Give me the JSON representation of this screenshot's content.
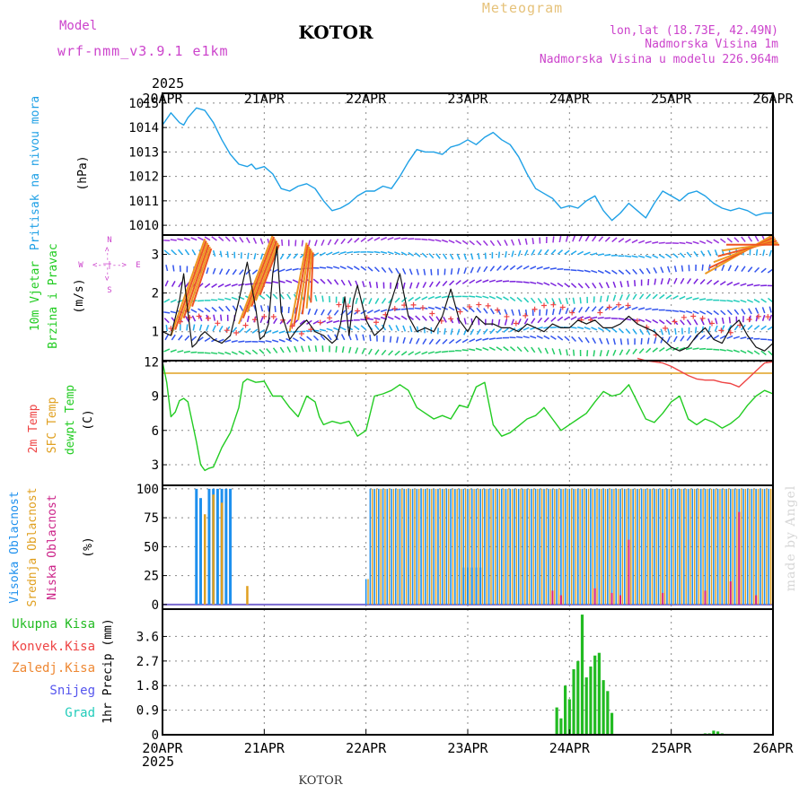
{
  "header": {
    "model_label": "Model",
    "model_name": "wrf-nmm_v3.9.1 e1km",
    "station": "KOTOR",
    "product": "Meteogram",
    "lonlat": "lon,lat (18.73E, 42.49N)",
    "elevation": "Nadmorska Visina 1m",
    "model_elevation": "Nadmorska Visina u modelu 226.964m",
    "footer_station": "KOTOR",
    "credit": "made by Angel"
  },
  "colors": {
    "pressure": "#1ea0e6",
    "temp2m": "#ee4444",
    "sfc_temp": "#e0a020",
    "dewpoint": "#22cc22",
    "high_cloud": "#1e90ee",
    "mid_cloud": "#e0a020",
    "low_cloud": "#cc2288",
    "precip": "#22bb22",
    "axis_title": "#cc44cc",
    "grid": "#888888"
  },
  "time_axis": {
    "year": "2025",
    "labels": [
      "20APR",
      "21APR",
      "22APR",
      "23APR",
      "24APR",
      "25APR",
      "26APR"
    ]
  },
  "panels": {
    "pressure": {
      "label": "Pritisak na nivou mora",
      "unit": "(hPa)"
    },
    "wind": {
      "label_1": "10m Vjetar",
      "label_2": "Brzina i Pravac",
      "unit": "(m/s)",
      "compass_n": "N",
      "compass_s": "S",
      "compass_w": "W",
      "compass_e": "E",
      "compass_mid": "<--|-->"
    },
    "temp": {
      "label_2m": "2m Temp",
      "label_sfc": "SFC Temp",
      "label_dew": "dewpt Temp",
      "unit": "(C)"
    },
    "cloud": {
      "label_high": "Visoka Oblacnost",
      "label_mid": "Srednja Oblacnost",
      "label_low": "Niska Oblacnost",
      "unit": "(%)"
    },
    "precip": {
      "label_total": "Ukupna Kisa",
      "label_conv": "Konvek.Kisa",
      "label_frz": "Zaledj.Kisa",
      "label_snow": "Snijeg",
      "label_hail": "Grad",
      "unit": "1hr Precip (mm)"
    }
  },
  "chart_data": [
    {
      "type": "line",
      "ylabel": "Pritisak na nivou mora (hPa)",
      "ylim": [
        1009.6,
        1015.4
      ],
      "yticks": [
        1010,
        1011,
        1012,
        1013,
        1014,
        1015
      ],
      "x_hours": [
        0,
        2,
        4,
        5,
        6,
        8,
        10,
        12,
        14,
        16,
        18,
        20,
        21,
        22,
        24,
        26,
        28,
        30,
        32,
        34,
        36,
        38,
        40,
        42,
        44,
        46,
        48,
        50,
        52,
        54,
        56,
        58,
        60,
        62,
        64,
        66,
        68,
        70,
        72,
        74,
        76,
        78,
        80,
        82,
        84,
        86,
        88,
        90,
        92,
        94,
        96,
        98,
        100,
        102,
        104,
        106,
        108,
        110,
        112,
        114,
        116,
        118,
        120,
        122,
        124,
        126,
        128,
        130,
        132,
        134,
        136,
        138,
        140,
        142,
        144
      ],
      "series": [
        {
          "values": [
            1014.1,
            1014.6,
            1014.2,
            1014.1,
            1014.4,
            1014.8,
            1014.7,
            1014.2,
            1013.5,
            1012.9,
            1012.5,
            1012.4,
            1012.5,
            1012.3,
            1012.4,
            1012.1,
            1011.5,
            1011.4,
            1011.6,
            1011.7,
            1011.5,
            1011.0,
            1010.6,
            1010.7,
            1010.9,
            1011.2,
            1011.4,
            1011.4,
            1011.6,
            1011.5,
            1012.0,
            1012.6,
            1013.1,
            1013.0,
            1013.0,
            1012.9,
            1013.2,
            1013.3,
            1013.5,
            1013.3,
            1013.6,
            1013.8,
            1013.5,
            1013.3,
            1012.8,
            1012.1,
            1011.5,
            1011.3,
            1011.1,
            1010.7,
            1010.8,
            1010.7,
            1011.0,
            1011.2,
            1010.6,
            1010.2,
            1010.5,
            1010.9,
            1010.6,
            1010.3,
            1010.9,
            1011.4,
            1011.2,
            1011.0,
            1011.3,
            1011.4,
            1011.2,
            1010.9,
            1010.7,
            1010.6,
            1010.7,
            1010.6,
            1010.4,
            1010.5,
            1010.5
          ]
        }
      ]
    },
    {
      "type": "line",
      "ylabel": "10m Vjetar Brzina i Pravac (m/s)",
      "ylim": [
        0.25,
        3.5
      ],
      "yticks": [
        1,
        2,
        3
      ],
      "x_hours": [
        0,
        2,
        4,
        5,
        6,
        7,
        8,
        9,
        10,
        12,
        14,
        16,
        18,
        20,
        22,
        23,
        24,
        25,
        26,
        27,
        28,
        30,
        32,
        34,
        36,
        38,
        40,
        41,
        42,
        43,
        44,
        45,
        46,
        48,
        50,
        52,
        54,
        56,
        58,
        60,
        62,
        64,
        66,
        68,
        70,
        72,
        74,
        76,
        78,
        80,
        82,
        84,
        86,
        88,
        90,
        92,
        94,
        96,
        98,
        100,
        102,
        104,
        106,
        108,
        110,
        112,
        114,
        116,
        118,
        120,
        122,
        124,
        126,
        128,
        130,
        132,
        134,
        136,
        138,
        140,
        142,
        144
      ],
      "series": [
        {
          "values": [
            1.0,
            0.9,
            1.8,
            2.5,
            1.5,
            0.6,
            0.7,
            0.9,
            1.0,
            0.8,
            0.7,
            0.9,
            1.8,
            2.8,
            1.6,
            0.8,
            0.9,
            1.2,
            2.5,
            3.2,
            1.5,
            0.8,
            1.1,
            1.3,
            1.0,
            0.9,
            0.7,
            0.8,
            1.2,
            1.9,
            0.9,
            1.8,
            2.2,
            1.3,
            0.9,
            1.1,
            1.8,
            2.5,
            1.4,
            1.0,
            1.1,
            1.0,
            1.4,
            2.1,
            1.3,
            1.0,
            1.4,
            1.2,
            1.2,
            1.1,
            1.1,
            1.0,
            1.2,
            1.1,
            1.0,
            1.2,
            1.1,
            1.1,
            1.3,
            1.2,
            1.3,
            1.1,
            1.1,
            1.2,
            1.4,
            1.2,
            1.1,
            1.0,
            0.8,
            0.6,
            0.5,
            0.6,
            0.9,
            1.1,
            0.8,
            0.7,
            1.1,
            1.3,
            0.9,
            0.6,
            0.5,
            0.7
          ]
        }
      ]
    },
    {
      "type": "line",
      "ylabel": "2m Temp / SFC Temp / dewpt Temp (C)",
      "ylim": [
        1.2,
        12.1
      ],
      "yticks": [
        3,
        6,
        9,
        12
      ],
      "x_hours": [
        0,
        1,
        2,
        3,
        4,
        5,
        6,
        8,
        9,
        10,
        11,
        12,
        14,
        16,
        18,
        19,
        20,
        22,
        24,
        26,
        28,
        30,
        32,
        34,
        36,
        37,
        38,
        40,
        42,
        44,
        46,
        48,
        50,
        52,
        54,
        56,
        58,
        60,
        62,
        64,
        66,
        68,
        70,
        72,
        74,
        76,
        78,
        80,
        82,
        84,
        86,
        88,
        90,
        92,
        94,
        96,
        98,
        100,
        102,
        104,
        106,
        108,
        110,
        112,
        114,
        116,
        118,
        120,
        122,
        124,
        126,
        128,
        130,
        132,
        134,
        136,
        138,
        140,
        142,
        144
      ],
      "series": [
        {
          "name": "dewpt Temp",
          "values": [
            12.0,
            10.2,
            7.2,
            7.6,
            8.6,
            8.8,
            8.5,
            5.0,
            3.0,
            2.5,
            2.7,
            2.8,
            4.5,
            5.8,
            8.0,
            10.2,
            10.5,
            10.2,
            10.3,
            9.0,
            9.0,
            8.0,
            7.2,
            9.0,
            8.5,
            7.2,
            6.5,
            6.8,
            6.6,
            6.8,
            5.5,
            6.0,
            9.0,
            9.2,
            9.5,
            10.0,
            9.5,
            8.0,
            7.5,
            7.0,
            7.3,
            7.0,
            8.2,
            8.0,
            9.8,
            10.2,
            6.5,
            5.5,
            5.8,
            6.4,
            7.0,
            7.3,
            8.0,
            7.0,
            6.0,
            6.5,
            7.0,
            7.5,
            8.5,
            9.4,
            9.0,
            9.2,
            10.0,
            8.5,
            7.0,
            6.7,
            7.5,
            8.5,
            9.0,
            7.0,
            6.5,
            7.0,
            6.7,
            6.2,
            6.6,
            7.2,
            8.2,
            9.0,
            9.5,
            9.2
          ]
        },
        {
          "name": "SFC Temp",
          "values": [
            11.0,
            11.0,
            11.0,
            11.0,
            11.0,
            11.0,
            11.0,
            11.0,
            11.0,
            11.0,
            11.0,
            11.0,
            11.0,
            11.0,
            11.0,
            11.0,
            11.0,
            11.0,
            11.0,
            11.0,
            11.0,
            11.0,
            11.0,
            11.0,
            11.0,
            11.0,
            11.0,
            11.0,
            11.0,
            11.0,
            11.0,
            11.0,
            11.0,
            11.0,
            11.0,
            11.0,
            11.0,
            11.0,
            11.0,
            11.0,
            11.0,
            11.0,
            11.0,
            11.0,
            11.0,
            11.0,
            11.0,
            11.0,
            11.0,
            11.0,
            11.0,
            11.0,
            11.0,
            11.0,
            11.0,
            11.0,
            11.0,
            11.0,
            11.0,
            11.0,
            11.0,
            11.0,
            11.0,
            11.0,
            11.0,
            11.0,
            11.0,
            11.0,
            11.0,
            11.0,
            11.0,
            11.0,
            11.0,
            11.0,
            11.0,
            11.0,
            11.0,
            11.0,
            11.0,
            11.0
          ]
        }
      ],
      "temp2m_series": {
        "name": "2m Temp",
        "x_hours": [
          112,
          114,
          116,
          118,
          120,
          122,
          124,
          126,
          128,
          130,
          132,
          134,
          136,
          138,
          140,
          142,
          144
        ],
        "values": [
          12.3,
          12.1,
          12.0,
          11.9,
          11.6,
          11.2,
          10.8,
          10.5,
          10.4,
          10.4,
          10.2,
          10.1,
          9.8,
          10.5,
          11.2,
          11.9,
          12.0
        ]
      }
    },
    {
      "type": "bar",
      "ylabel": "Visoka / Srednja / Niska Oblacnost (%)",
      "ylim": [
        -4,
        103
      ],
      "yticks": [
        0,
        25,
        50,
        75,
        100
      ],
      "series": [
        {
          "name": "Visoka Oblacnost",
          "x_hours": [
            8,
            9,
            11,
            12,
            13,
            14,
            15,
            16
          ],
          "values": [
            100,
            92,
            100,
            100,
            100,
            100,
            100,
            100
          ]
        },
        {
          "name": "Srednja Oblacnost",
          "x_hours": [
            10,
            12,
            14,
            20,
            48,
            49,
            50,
            51,
            52,
            53,
            54,
            55,
            56,
            57,
            58,
            59,
            60,
            61,
            62,
            63,
            64,
            65,
            66,
            67,
            68,
            69,
            70,
            71,
            72,
            73,
            74,
            75,
            76,
            77,
            78,
            79,
            80,
            81,
            82,
            83,
            84,
            85,
            86,
            87,
            88,
            89,
            90,
            91,
            92,
            93,
            94,
            95,
            96,
            97,
            98,
            99,
            100,
            101,
            102,
            103,
            104,
            105,
            106,
            107,
            108,
            109,
            110,
            111,
            112,
            113,
            114,
            115,
            116,
            117,
            118,
            119,
            120,
            121,
            122,
            123,
            124,
            125,
            126,
            127,
            128,
            129,
            130,
            131,
            132,
            133,
            134,
            135,
            136,
            137,
            138,
            139,
            140,
            141,
            142,
            143
          ],
          "values": [
            78,
            95,
            88,
            16,
            22,
            100,
            100,
            100,
            100,
            100,
            100,
            100,
            100,
            100,
            100,
            100,
            100,
            100,
            100,
            100,
            100,
            100,
            100,
            100,
            100,
            100,
            100,
            100,
            100,
            100,
            100,
            100,
            100,
            100,
            100,
            100,
            100,
            100,
            100,
            100,
            100,
            100,
            100,
            100,
            100,
            100,
            100,
            100,
            100,
            100,
            100,
            100,
            100,
            100,
            100,
            100,
            100,
            100,
            100,
            100,
            100,
            100,
            100,
            100,
            100,
            100,
            100,
            100,
            100,
            100,
            100,
            100,
            100,
            100,
            100,
            100,
            100,
            100,
            100,
            100,
            100,
            100,
            100,
            100,
            100,
            100,
            100,
            100,
            100,
            100,
            100,
            100,
            100,
            100,
            100,
            100,
            100,
            100,
            100,
            100
          ]
        },
        {
          "name": "Niska Oblacnost",
          "x_hours": [
            92,
            94,
            102,
            106,
            108,
            110,
            118,
            128,
            134,
            136,
            140
          ],
          "values": [
            12,
            8,
            14,
            10,
            8,
            56,
            10,
            12,
            20,
            80,
            8
          ]
        }
      ],
      "high_cloud_steps": {
        "x_hours": [
          71,
          72,
          73,
          74,
          75
        ],
        "values": [
          32,
          32,
          32,
          32,
          32
        ]
      }
    },
    {
      "type": "bar",
      "ylabel": "1hr Precip (mm)",
      "ylim": [
        0,
        4.6
      ],
      "yticks": [
        0,
        0.9,
        1.8,
        2.7,
        3.6
      ],
      "series": [
        {
          "name": "Ukupna Kisa",
          "x_hours": [
            93,
            94,
            95,
            96,
            97,
            98,
            99,
            100,
            101,
            102,
            103,
            104,
            105,
            106,
            128,
            129,
            130,
            131,
            132
          ],
          "values": [
            1.0,
            0.6,
            1.8,
            1.3,
            2.4,
            2.7,
            4.4,
            2.1,
            2.5,
            2.9,
            3.0,
            2.0,
            1.6,
            0.8,
            0.05,
            0.05,
            0.15,
            0.12,
            0.05
          ]
        }
      ]
    }
  ]
}
